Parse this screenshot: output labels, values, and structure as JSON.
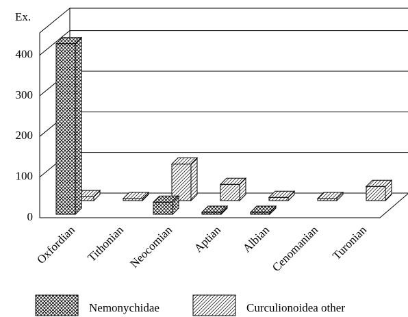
{
  "chart_data": {
    "type": "bar3d",
    "ylabel": "Ex.",
    "categories": [
      "Oxfordian",
      "Tithonian",
      "Neocomian",
      "Aptian",
      "Albian",
      "Cenomanian",
      "Turonian"
    ],
    "series": [
      {
        "name": "Nemonychidae",
        "pattern": "crosshatch",
        "values": [
          420,
          null,
          30,
          5,
          5,
          null,
          null
        ]
      },
      {
        "name": "Curculionoidea other",
        "pattern": "diagonal",
        "values": [
          10,
          5,
          90,
          40,
          8,
          5,
          35
        ]
      }
    ],
    "ylim": [
      0,
      455
    ],
    "yticks": [
      0,
      100,
      200,
      300,
      400
    ],
    "grid": true
  }
}
